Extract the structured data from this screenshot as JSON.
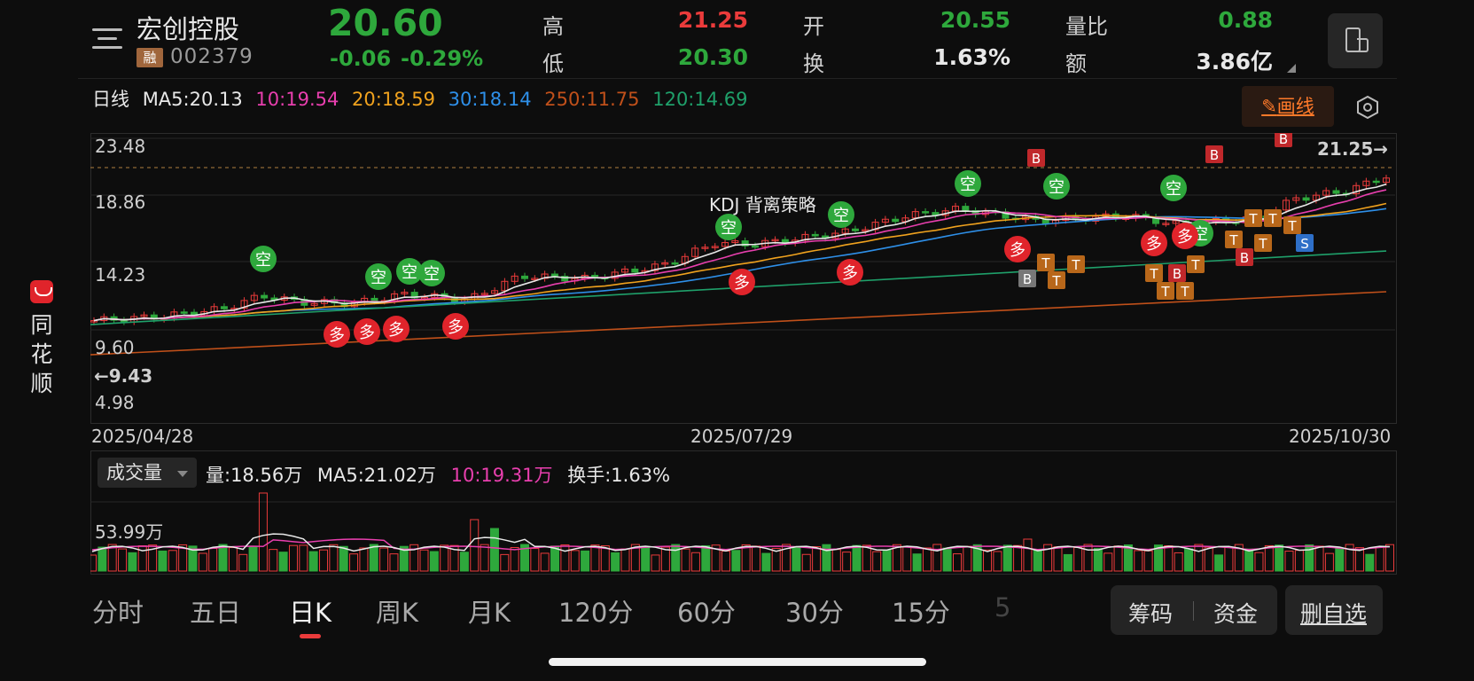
{
  "side": {
    "brand_text": "同花顺"
  },
  "header": {
    "stock_name": "宏创控股",
    "badge": "融",
    "code": "002379",
    "price": "20.60",
    "change": "-0.06",
    "change_pct": "-0.29%",
    "quotes": [
      {
        "label": "高",
        "value": "21.25",
        "color": "#ea3b3b"
      },
      {
        "label": "低",
        "value": "20.30",
        "color": "#2ea83c"
      },
      {
        "label": "开",
        "value": "20.55",
        "color": "#2ea83c"
      },
      {
        "label": "换",
        "value": "1.63%",
        "color": "#e8e8e8"
      },
      {
        "label": "量比",
        "value": "0.88",
        "color": "#2ea83c"
      },
      {
        "label": "额",
        "value": "3.86亿",
        "color": "#e8e8e8"
      }
    ]
  },
  "ma_bar": {
    "period": "日线",
    "items": [
      {
        "text": "MA5:20.13",
        "color": "#e8e8e8"
      },
      {
        "text": "10:19.54",
        "color": "#e83fae"
      },
      {
        "text": "20:18.59",
        "color": "#f0a21e"
      },
      {
        "text": "30:18.14",
        "color": "#2e8fe8"
      },
      {
        "text": "250:11.75",
        "color": "#c0501a"
      },
      {
        "text": "120:14.69",
        "color": "#1fa06a"
      }
    ],
    "draw_button": "画线"
  },
  "kline": {
    "y_labels": [
      "23.48",
      "18.86",
      "14.23",
      "9.60",
      "4.98"
    ],
    "max_marker": "21.25",
    "min_marker": "9.43",
    "strategy_label": "KDJ 背离策略",
    "dates": [
      "2025/04/28",
      "2025/07/29",
      "2025/10/30"
    ],
    "signal_labels": {
      "short": "空",
      "long": "多",
      "buy": "B",
      "sell": "S",
      "t": "T"
    }
  },
  "volume": {
    "selector": "成交量",
    "items": [
      {
        "text": "量:18.56万",
        "color": "#e8e8e8"
      },
      {
        "text": "MA5:21.02万",
        "color": "#e8e8e8"
      },
      {
        "text": "10:19.31万",
        "color": "#e83fae"
      },
      {
        "text": "换手:1.63%",
        "color": "#e8e8e8"
      }
    ],
    "y_label": "53.99万"
  },
  "tabs": [
    "分时",
    "五日",
    "日K",
    "周K",
    "月K",
    "120分",
    "60分",
    "30分",
    "15分",
    "5"
  ],
  "active_tab": "日K",
  "actions": {
    "chips": "筹码",
    "funds": "资金",
    "remove_watch": "删自选"
  }
}
